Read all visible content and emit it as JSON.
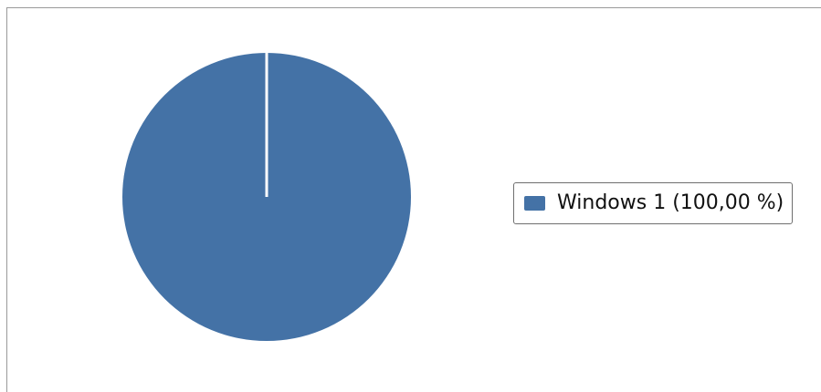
{
  "chart_data": {
    "type": "pie",
    "title": "",
    "categories": [
      "Windows 1"
    ],
    "values": [
      100
    ],
    "colors": [
      "#4472a6"
    ],
    "legend": {
      "placement": "right",
      "entries": [
        {
          "label": "Windows 1 (100,00 %)",
          "color": "#4472a6"
        }
      ]
    }
  }
}
